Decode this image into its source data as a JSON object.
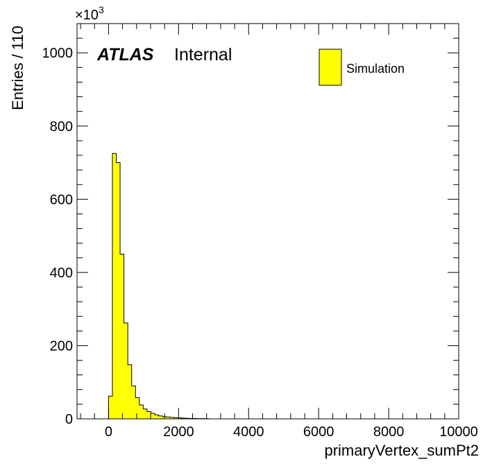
{
  "chart_data": {
    "type": "bar",
    "xlabel": "primaryVertex_sumPt2",
    "ylabel": "Entries / 110",
    "y_multiplier_label": "×10",
    "y_multiplier_exponent": "3",
    "xlim": [
      -900,
      10000
    ],
    "ylim": [
      0,
      1080
    ],
    "x_ticks": [
      0,
      2000,
      4000,
      6000,
      8000,
      10000
    ],
    "y_ticks": [
      0,
      200,
      400,
      600,
      800,
      1000
    ],
    "bin_width": 110,
    "bin_edges_start": 0,
    "values": [
      62,
      725,
      700,
      450,
      262,
      148,
      90,
      58,
      38,
      27,
      20,
      15,
      11,
      8,
      6,
      5,
      4,
      3,
      2.5,
      2,
      1.5,
      1.2,
      1,
      0.8,
      0.6,
      0.5
    ],
    "fill_color": "#ffff00",
    "edge_color": "#000000",
    "experiment_label": "ATLAS",
    "status_label": "Internal",
    "legend": [
      {
        "label": "Simulation",
        "color": "#ffff00"
      }
    ],
    "legend_position": "top-right",
    "grid": false
  }
}
